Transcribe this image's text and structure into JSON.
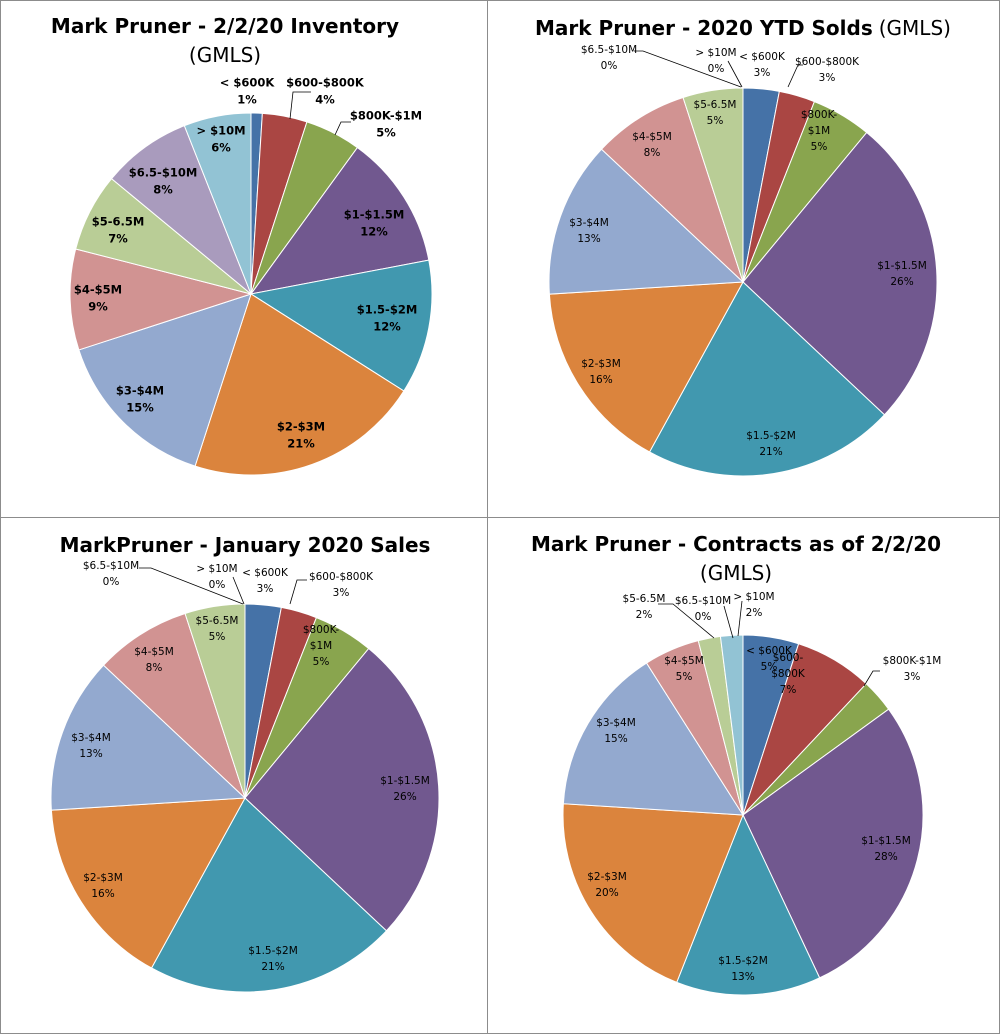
{
  "colors": {
    "lt600k": "#4572A7",
    "600to800k": "#AA4643",
    "800kto1m": "#89A54E",
    "1to15m": "#71588F",
    "15to2m": "#4198AF",
    "2to3m": "#DB843D",
    "3to4m": "#93A9CF",
    "4to5m": "#D19392",
    "5to65m": "#B9CD96",
    "65to10m": "#A99BBD",
    "gt10m": "#92C3D4"
  },
  "chart_data": [
    {
      "type": "pie",
      "title": "Mark Pruner - 2/2/20 Inventory",
      "subtitle": "(GMLS)",
      "label_style": "bold",
      "slices": [
        {
          "key": "lt600k",
          "label": "< $600K",
          "percent_label": "1%",
          "value": 1
        },
        {
          "key": "600to800k",
          "label": "$600-$800K",
          "percent_label": "4%",
          "value": 4
        },
        {
          "key": "800kto1m",
          "label": "$800K-$1M",
          "percent_label": "5%",
          "value": 5
        },
        {
          "key": "1to15m",
          "label": "$1-$1.5M",
          "percent_label": "12%",
          "value": 12
        },
        {
          "key": "15to2m",
          "label": "$1.5-$2M",
          "percent_label": "12%",
          "value": 12
        },
        {
          "key": "2to3m",
          "label": "$2-$3M",
          "percent_label": "21%",
          "value": 21
        },
        {
          "key": "3to4m",
          "label": "$3-$4M",
          "percent_label": "15%",
          "value": 15
        },
        {
          "key": "4to5m",
          "label": "$4-$5M",
          "percent_label": "9%",
          "value": 9
        },
        {
          "key": "5to65m",
          "label": "$5-6.5M",
          "percent_label": "7%",
          "value": 7
        },
        {
          "key": "65to10m",
          "label": "$6.5-$10M",
          "percent_label": "8%",
          "value": 8
        },
        {
          "key": "gt10m",
          "label": "> $10M",
          "percent_label": "6%",
          "value": 6
        }
      ]
    },
    {
      "type": "pie",
      "title": "Mark Pruner - 2020 YTD Solds",
      "title_suffix": "(GMLS)",
      "label_style": "normal",
      "slices": [
        {
          "key": "lt600k",
          "label": "< $600K",
          "percent_label": "3%",
          "value": 3
        },
        {
          "key": "600to800k",
          "label": "$600-$800K",
          "percent_label": "3%",
          "value": 3
        },
        {
          "key": "800kto1m",
          "label": "$800K-$1M",
          "label_lines": [
            "$800K-",
            "$1M"
          ],
          "percent_label": "5%",
          "value": 5
        },
        {
          "key": "1to15m",
          "label": "$1-$1.5M",
          "percent_label": "26%",
          "value": 26
        },
        {
          "key": "15to2m",
          "label": "$1.5-$2M",
          "percent_label": "21%",
          "value": 21
        },
        {
          "key": "2to3m",
          "label": "$2-$3M",
          "percent_label": "16%",
          "value": 16
        },
        {
          "key": "3to4m",
          "label": "$3-$4M",
          "percent_label": "13%",
          "value": 13
        },
        {
          "key": "4to5m",
          "label": "$4-$5M",
          "percent_label": "8%",
          "value": 8
        },
        {
          "key": "5to65m",
          "label": "$5-6.5M",
          "percent_label": "5%",
          "value": 5
        },
        {
          "key": "65to10m",
          "label": "$6.5-$10M",
          "percent_label": "0%",
          "value": 0
        },
        {
          "key": "gt10m",
          "label": "> $10M",
          "percent_label": "0%",
          "value": 0
        }
      ]
    },
    {
      "type": "pie",
      "title": "MarkPruner - January 2020 Sales",
      "label_style": "normal",
      "slices": [
        {
          "key": "lt600k",
          "label": "< $600K",
          "percent_label": "3%",
          "value": 3
        },
        {
          "key": "600to800k",
          "label": "$600-$800K",
          "percent_label": "3%",
          "value": 3
        },
        {
          "key": "800kto1m",
          "label": "$800K-$1M",
          "label_lines": [
            "$800K-",
            "$1M"
          ],
          "percent_label": "5%",
          "value": 5
        },
        {
          "key": "1to15m",
          "label": "$1-$1.5M",
          "percent_label": "26%",
          "value": 26
        },
        {
          "key": "15to2m",
          "label": "$1.5-$2M",
          "percent_label": "21%",
          "value": 21
        },
        {
          "key": "2to3m",
          "label": "$2-$3M",
          "percent_label": "16%",
          "value": 16
        },
        {
          "key": "3to4m",
          "label": "$3-$4M",
          "percent_label": "13%",
          "value": 13
        },
        {
          "key": "4to5m",
          "label": "$4-$5M",
          "percent_label": "8%",
          "value": 8
        },
        {
          "key": "5to65m",
          "label": "$5-6.5M",
          "percent_label": "5%",
          "value": 5
        },
        {
          "key": "65to10m",
          "label": "$6.5-$10M",
          "percent_label": "0%",
          "value": 0
        },
        {
          "key": "gt10m",
          "label": "> $10M",
          "percent_label": "0%",
          "value": 0
        }
      ]
    },
    {
      "type": "pie",
      "title": "Mark Pruner - Contracts as of 2/2/20",
      "subtitle": "(GMLS)",
      "label_style": "normal",
      "slices": [
        {
          "key": "lt600k",
          "label": "< $600K",
          "percent_label": "5%",
          "value": 5
        },
        {
          "key": "600to800k",
          "label": "$600-$800K",
          "label_lines": [
            "$600-",
            "$800K"
          ],
          "percent_label": "7%",
          "value": 7
        },
        {
          "key": "800kto1m",
          "label": "$800K-$1M",
          "percent_label": "3%",
          "value": 3
        },
        {
          "key": "1to15m",
          "label": "$1-$1.5M",
          "percent_label": "28%",
          "value": 28
        },
        {
          "key": "15to2m",
          "label": "$1.5-$2M",
          "percent_label": "13%",
          "value": 13
        },
        {
          "key": "2to3m",
          "label": "$2-$3M",
          "percent_label": "20%",
          "value": 20
        },
        {
          "key": "3to4m",
          "label": "$3-$4M",
          "percent_label": "15%",
          "value": 15
        },
        {
          "key": "4to5m",
          "label": "$4-$5M",
          "percent_label": "5%",
          "value": 5
        },
        {
          "key": "5to65m",
          "label": "$5-6.5M",
          "percent_label": "2%",
          "value": 2
        },
        {
          "key": "65to10m",
          "label": "$6.5-$10M",
          "percent_label": "0%",
          "value": 0
        },
        {
          "key": "gt10m",
          "label": "> $10M",
          "percent_label": "2%",
          "value": 2
        }
      ]
    }
  ]
}
